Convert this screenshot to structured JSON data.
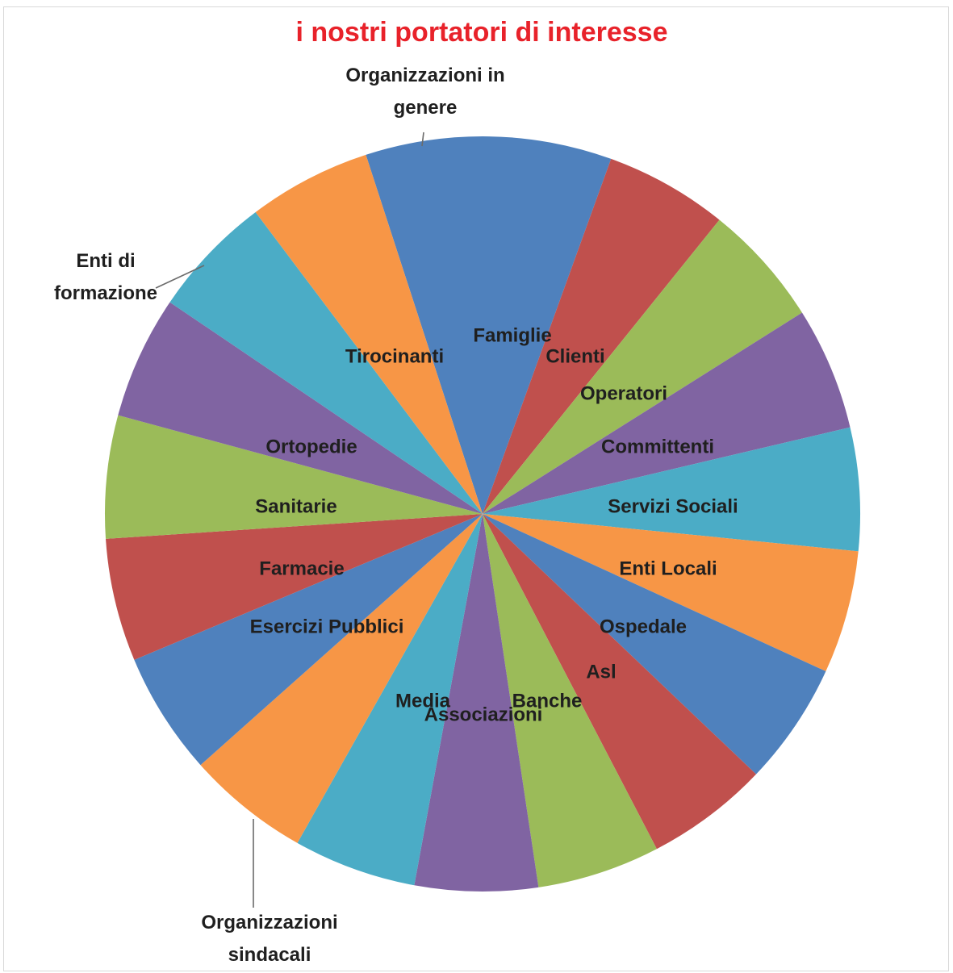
{
  "chart_data": {
    "type": "pie",
    "title": "i nostri portatori di interesse",
    "start_angle_deg": -18,
    "legend": "none",
    "categories": [
      "Famiglie",
      "Clienti",
      "Operatori",
      "Committenti",
      "Servizi Sociali",
      "Enti Locali",
      "Ospedale",
      "Asl",
      "Banche",
      "Associazioni",
      "Media",
      "Organizzazioni sindacali",
      "Esercizi Pubblici",
      "Farmacie",
      "Sanitarie",
      "Ortopedie",
      "Enti di formazione",
      "Tirocinanti"
    ],
    "values": [
      2,
      1,
      1,
      1,
      1,
      1,
      1,
      1,
      1,
      1,
      1,
      1,
      1,
      1,
      1,
      1,
      1,
      1
    ],
    "colors": [
      "#4f81bd",
      "#c0504d",
      "#9bbb59",
      "#8064a2",
      "#4bacc6",
      "#f79646",
      "#4f81bd",
      "#c0504d",
      "#9bbb59",
      "#8064a2",
      "#4bacc6",
      "#f79646",
      "#4f81bd",
      "#c0504d",
      "#9bbb59",
      "#8064a2",
      "#4bacc6",
      "#f79646"
    ],
    "inside_labels": [
      "Famiglie",
      "Clienti",
      "Operatori",
      "Committenti",
      "Servizi Sociali",
      "Enti Locali",
      "Ospedale",
      "Asl",
      "Banche",
      "Associazioni",
      "Media",
      "Esercizi Pubblici",
      "Farmacie",
      "Sanitarie",
      "Ortopedie",
      "Tirocinanti"
    ],
    "outside_labels": [
      {
        "lines": [
          "Organizzazioni in",
          "genere"
        ]
      },
      {
        "lines": [
          "Enti  di",
          "formazione"
        ]
      },
      {
        "lines": [
          "Organizzazioni",
          "sindacali"
        ]
      }
    ]
  }
}
